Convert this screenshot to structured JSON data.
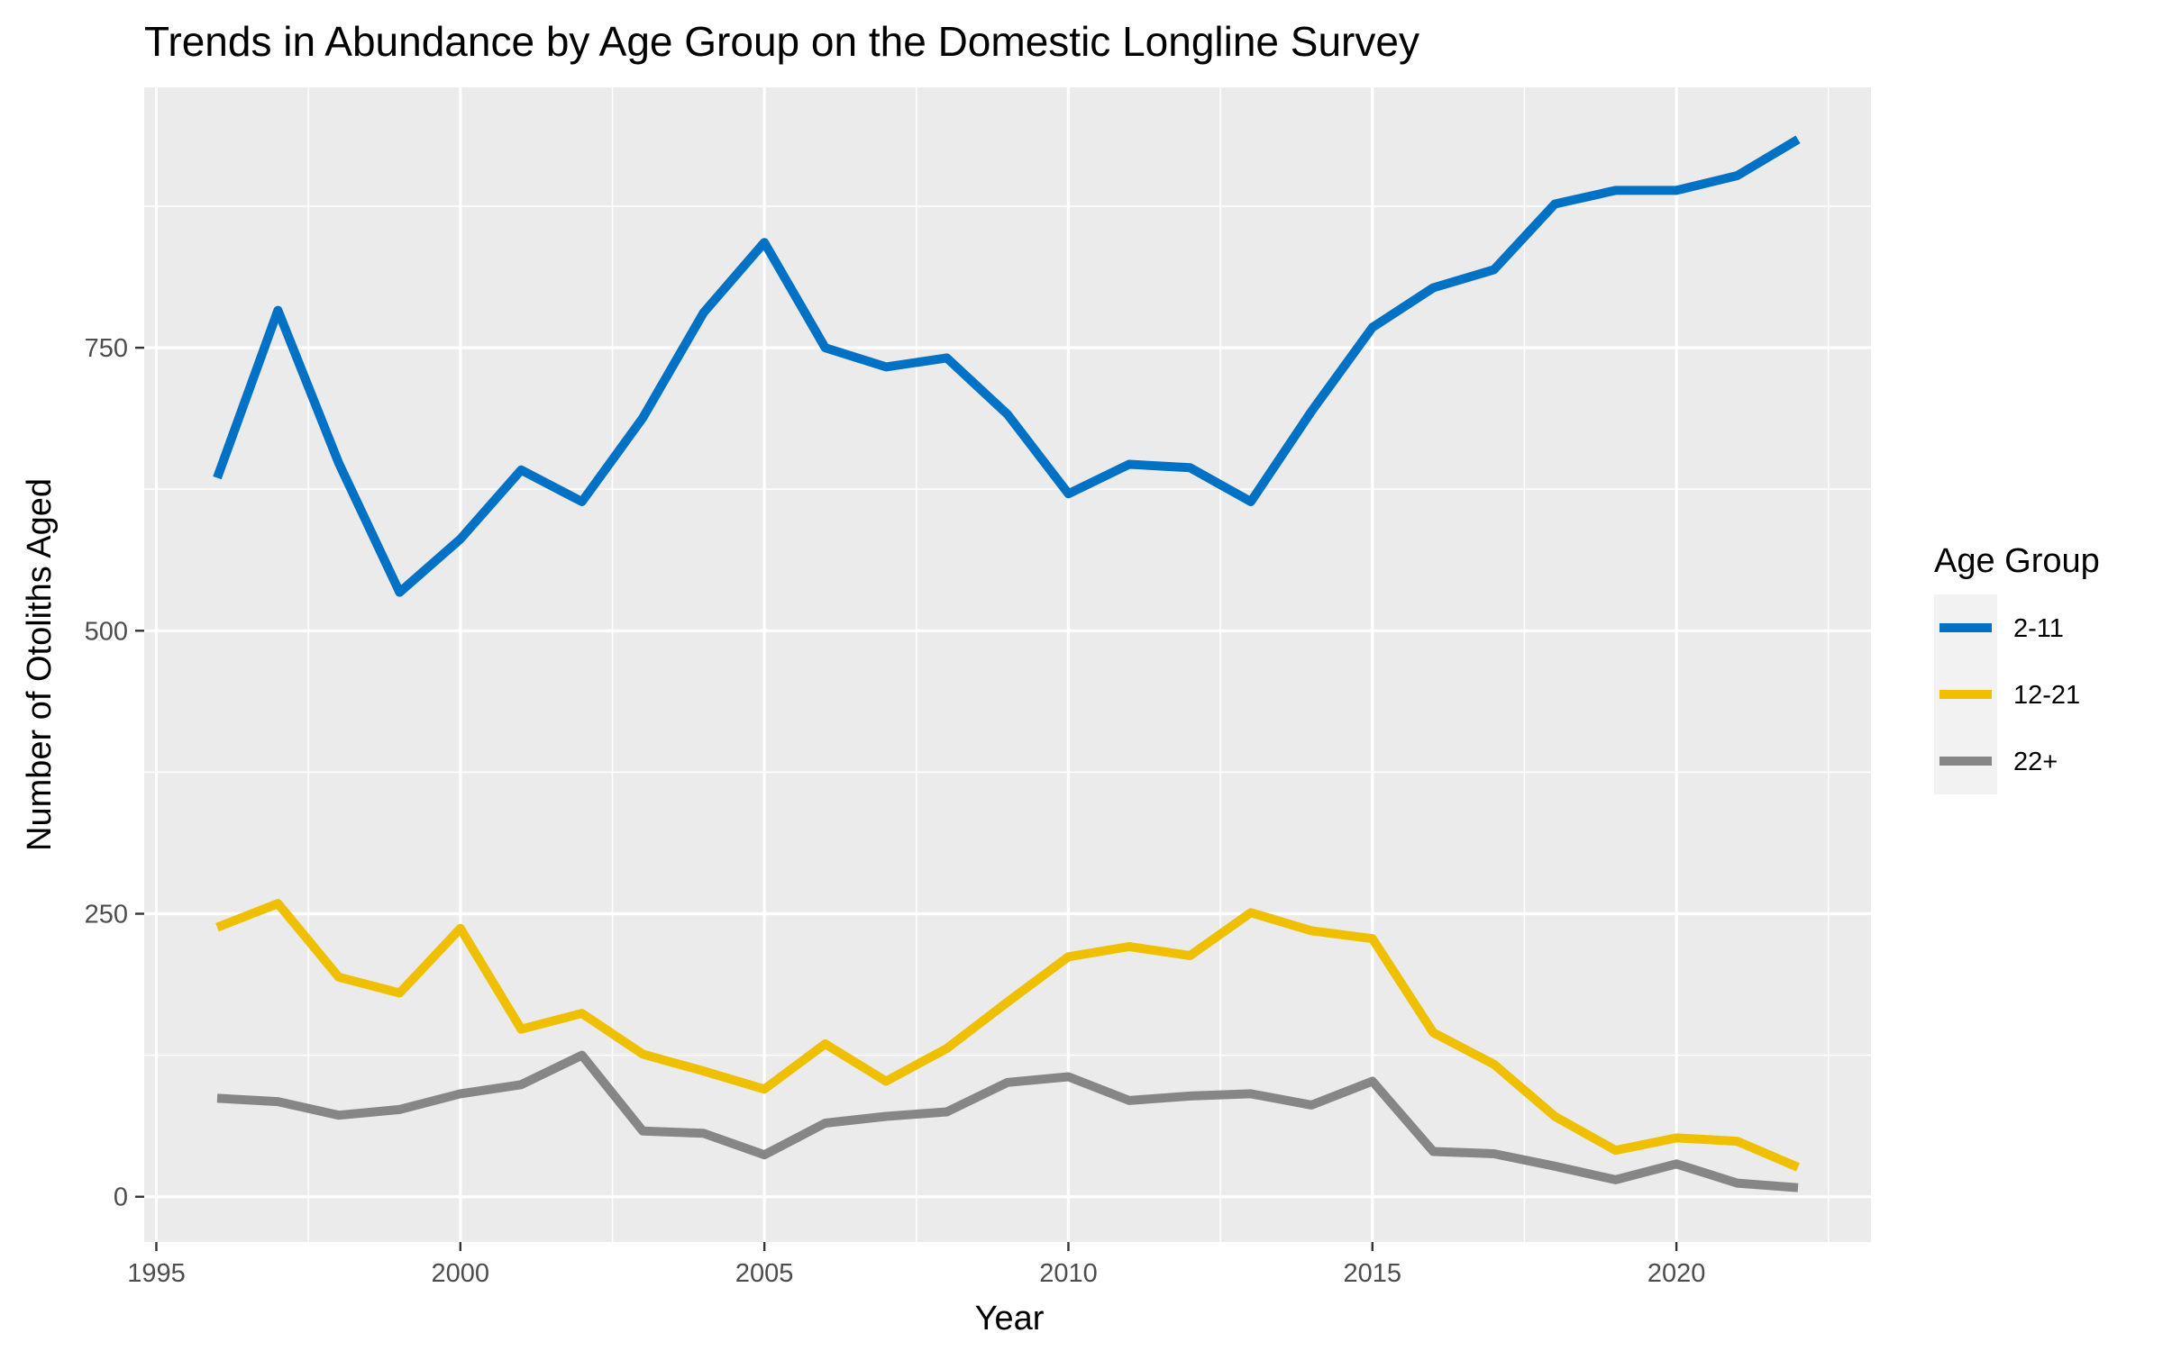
{
  "chart_data": {
    "type": "line",
    "title": "Trends in Abundance by Age Group on the Domestic Longline Survey",
    "xlabel": "Year",
    "ylabel": "Number of Otoliths Aged",
    "xlim": [
      1994.8,
      2023.2
    ],
    "ylim": [
      -40,
      980
    ],
    "x_ticks": [
      1995,
      2000,
      2005,
      2010,
      2015,
      2020
    ],
    "y_ticks": [
      0,
      250,
      500,
      750
    ],
    "grid": true,
    "legend": {
      "title": "Age Group",
      "position": "right"
    },
    "x": [
      1996,
      1997,
      1998,
      1999,
      2000,
      2001,
      2002,
      2003,
      2004,
      2005,
      2006,
      2007,
      2008,
      2009,
      2010,
      2011,
      2012,
      2013,
      2014,
      2015,
      2016,
      2017,
      2018,
      2019,
      2020,
      2021,
      2022
    ],
    "series": [
      {
        "name": "2-11",
        "color": "#0072C6",
        "values": [
          635,
          783,
          648,
          534,
          581,
          642,
          614,
          688,
          781,
          843,
          750,
          733,
          741,
          691,
          621,
          647,
          644,
          614,
          694,
          768,
          803,
          819,
          877,
          889,
          889,
          902,
          934
        ]
      },
      {
        "name": "12-21",
        "color": "#EFC000",
        "values": [
          238,
          259,
          194,
          180,
          237,
          148,
          162,
          126,
          111,
          95,
          135,
          102,
          131,
          172,
          212,
          221,
          213,
          251,
          235,
          228,
          145,
          117,
          71,
          41,
          52,
          49,
          26
        ]
      },
      {
        "name": "22+",
        "color": "#868686",
        "values": [
          87,
          84,
          72,
          77,
          91,
          99,
          125,
          58,
          56,
          37,
          65,
          71,
          75,
          101,
          106,
          85,
          89,
          91,
          81,
          102,
          40,
          38,
          27,
          15,
          29,
          12,
          8
        ]
      }
    ]
  }
}
